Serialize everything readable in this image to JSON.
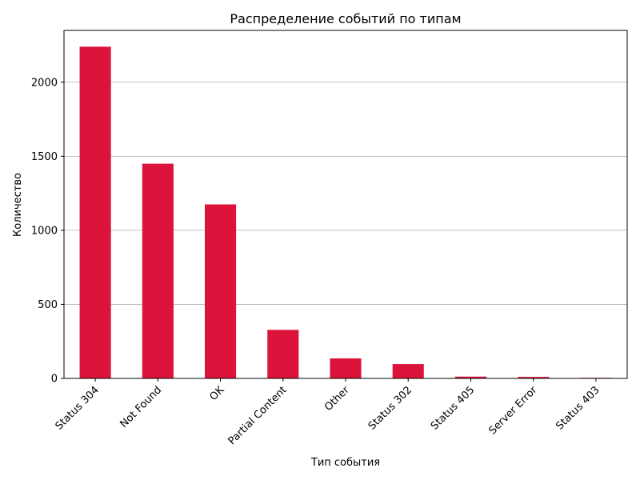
{
  "chart_data": {
    "type": "bar",
    "title": "Распределение событий по типам",
    "xlabel": "Тип события",
    "ylabel": "Количество",
    "categories": [
      "Status 304",
      "Not Found",
      "OK",
      "Partial Content",
      "Other",
      "Status 302",
      "Status 405",
      "Server Error",
      "Status 403"
    ],
    "values": [
      2240,
      1450,
      1175,
      328,
      135,
      97,
      12,
      10,
      4
    ],
    "ylim": [
      0,
      2350
    ],
    "yticks": [
      0,
      500,
      1000,
      1500,
      2000
    ],
    "grid": "y",
    "bar_color": "#dc143c"
  }
}
